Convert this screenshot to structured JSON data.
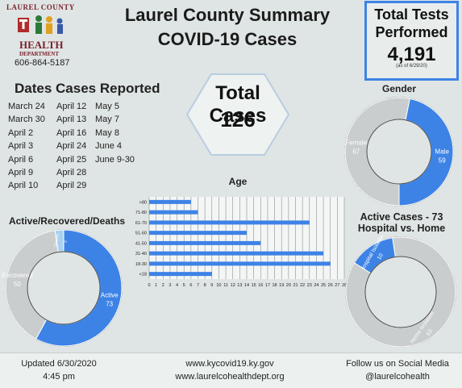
{
  "logo": {
    "org_top": "LAUREL COUNTY",
    "org_main": "HEALTH",
    "org_sub": "DEPARTMENT",
    "phone": "606-864-5187"
  },
  "title": {
    "line1": "Laurel County Summary",
    "line2": "COVID-19 Cases"
  },
  "total_tests": {
    "label_line1": "Total Tests",
    "label_line2": "Performed",
    "value": "4,191",
    "note": "(as of 6/29/20)"
  },
  "dates_reported": {
    "title": "Dates Cases Reported",
    "columns": [
      [
        "March 24",
        "March 30",
        "April 2",
        "April 3",
        "April 6",
        "April 9",
        "April 10"
      ],
      [
        "April 12",
        "April 13",
        "April 16",
        "April 24",
        "April 25",
        "April 28",
        "April 29"
      ],
      [
        "May 5",
        "May 7",
        "May 8",
        "June 4",
        "June 9-30"
      ]
    ]
  },
  "total_cases": {
    "label": "Total Cases",
    "value": "126"
  },
  "colors": {
    "blue": "#3d83e6",
    "gray": "#c9cdcd",
    "light_blue": "#a8d1f0",
    "outline": "#4a4a4a"
  },
  "chart_data": [
    {
      "id": "gender",
      "type": "pie",
      "title": "Gender",
      "donut": true,
      "slices": [
        {
          "label": "Male",
          "value": 59,
          "color": "#3d83e6"
        },
        {
          "label": "Female",
          "value": 67,
          "color": "#c9cdcd"
        }
      ]
    },
    {
      "id": "age",
      "type": "bar",
      "orientation": "horizontal",
      "title": "Age",
      "categories": [
        ">80",
        "71-80",
        "61-70",
        "51-60",
        "41-50",
        "31-40",
        "18-30",
        "<18"
      ],
      "values": [
        6,
        7,
        23,
        14,
        16,
        25,
        26,
        9
      ],
      "xlim": [
        0,
        28
      ],
      "xticks": [
        0,
        1,
        2,
        3,
        4,
        5,
        6,
        7,
        8,
        9,
        10,
        11,
        12,
        13,
        14,
        15,
        16,
        17,
        18,
        19,
        20,
        21,
        22,
        23,
        24,
        25,
        26,
        27,
        28
      ],
      "grid": true
    },
    {
      "id": "active_recovered_deaths",
      "type": "pie",
      "title": "Active/Recovered/Deaths",
      "donut": true,
      "slices": [
        {
          "label": "Active",
          "value": 73,
          "color": "#3d83e6"
        },
        {
          "label": "Recovered",
          "value": 50,
          "color": "#c9cdcd"
        },
        {
          "label": "Deaths",
          "value": 3,
          "color": "#a8d1f0"
        }
      ]
    },
    {
      "id": "hospital_vs_home",
      "type": "pie",
      "title": "Active Cases - 73",
      "subtitle": "Hospital vs. Home",
      "donut": true,
      "slices": [
        {
          "label": "Hospital Isolation",
          "value": 10,
          "color": "#3d83e6"
        },
        {
          "label": "Home Isolation",
          "value": 63,
          "color": "#c9cdcd"
        }
      ]
    }
  ],
  "footer": {
    "updated_label": "Updated 6/30/2020",
    "updated_time": "4:45 pm",
    "site1": "www.kycovid19.ky.gov",
    "site2": "www.laurelcohealthdept.org",
    "social_label": "Follow us on Social Media",
    "social_handle": "@laurelcohealth"
  }
}
